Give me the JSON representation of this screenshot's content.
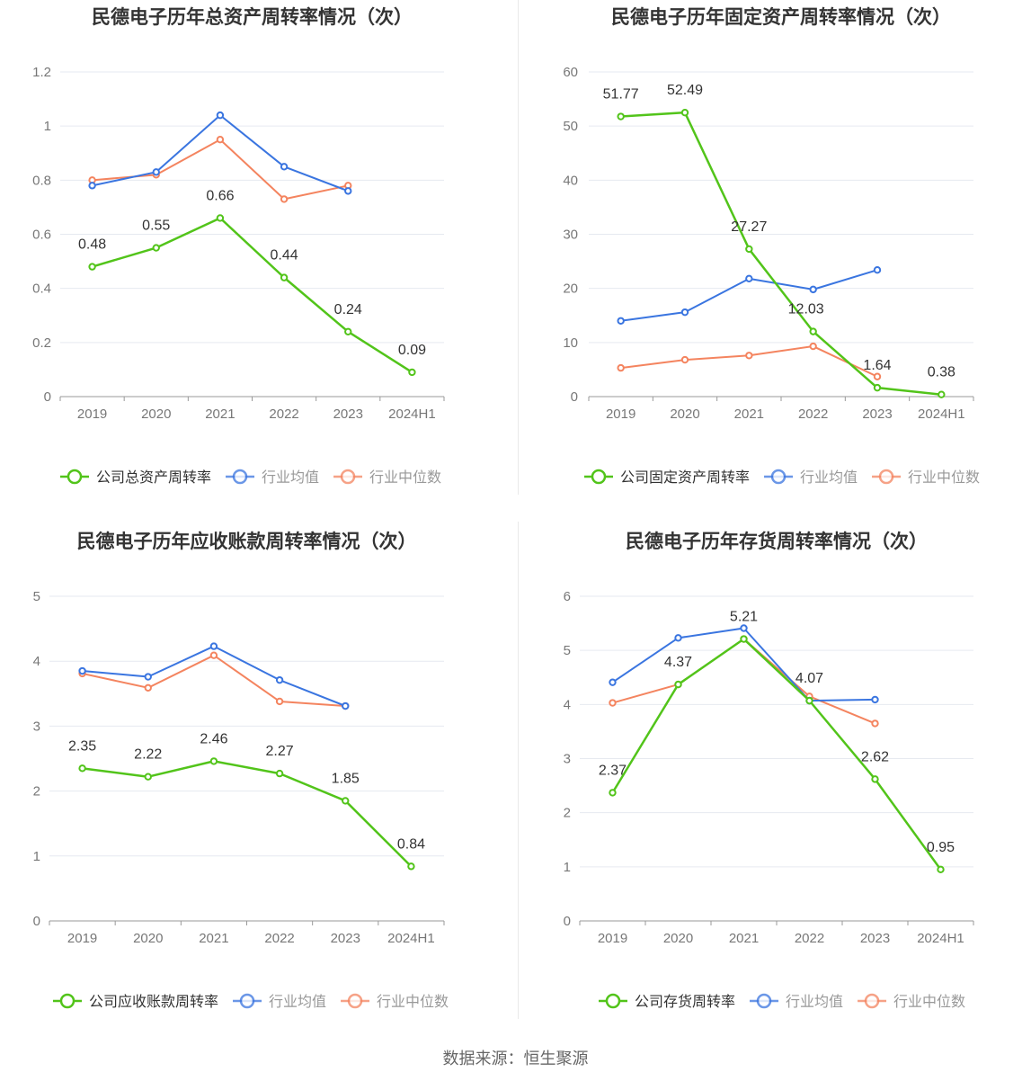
{
  "source": "数据来源：恒生聚源",
  "legend_labels": {
    "avg": "行业均值",
    "median": "行业中位数"
  },
  "colors": {
    "company": "#52c41a",
    "avg": "#3a75e0",
    "median": "#f4845f",
    "grid": "#e6e9f0",
    "axis": "#999999",
    "tick_text": "#777777",
    "title": "#333333"
  },
  "chart_data": [
    {
      "type": "line",
      "title": "民德电子历年总资产周转率情况（次）",
      "x": [
        "2019",
        "2020",
        "2021",
        "2022",
        "2023",
        "2024H1"
      ],
      "ylim": [
        0,
        1.2
      ],
      "yticks": [
        "0",
        "0.2",
        "0.4",
        "0.6",
        "0.8",
        "1",
        "1.2"
      ],
      "yticks_values": [
        0,
        0.2,
        0.4,
        0.6,
        0.8,
        1.0,
        1.2
      ],
      "grid": true,
      "legend": "bottom",
      "series": [
        {
          "name": "公司总资产周转率",
          "key": "company",
          "values": [
            0.48,
            0.55,
            0.66,
            0.44,
            0.24,
            0.09
          ],
          "labels": [
            "0.48",
            "0.55",
            "0.66",
            "0.44",
            "0.24",
            "0.09"
          ]
        },
        {
          "name": "行业均值",
          "key": "avg",
          "values": [
            0.78,
            0.83,
            1.04,
            0.85,
            0.76,
            null
          ]
        },
        {
          "name": "行业中位数",
          "key": "median",
          "values": [
            0.8,
            0.82,
            0.95,
            0.73,
            0.78,
            null
          ]
        }
      ]
    },
    {
      "type": "line",
      "title": "民德电子历年固定资产周转率情况（次）",
      "x": [
        "2019",
        "2020",
        "2021",
        "2022",
        "2023",
        "2024H1"
      ],
      "ylim": [
        0,
        60
      ],
      "yticks": [
        "0",
        "10",
        "20",
        "30",
        "40",
        "50",
        "60"
      ],
      "yticks_values": [
        0,
        10,
        20,
        30,
        40,
        50,
        60
      ],
      "grid": true,
      "legend": "bottom",
      "series": [
        {
          "name": "公司固定资产周转率",
          "key": "company",
          "values": [
            51.77,
            52.49,
            27.27,
            12.03,
            1.64,
            0.38
          ],
          "labels": [
            "51.77",
            "52.49",
            "27.27",
            "12.03",
            "1.64",
            "0.38"
          ]
        },
        {
          "name": "行业均值",
          "key": "avg",
          "values": [
            14.0,
            15.6,
            21.8,
            19.8,
            23.4,
            null
          ]
        },
        {
          "name": "行业中位数",
          "key": "median",
          "values": [
            5.3,
            6.8,
            7.6,
            9.3,
            3.7,
            null
          ]
        }
      ]
    },
    {
      "type": "line",
      "title": "民德电子历年应收账款周转率情况（次）",
      "x": [
        "2019",
        "2020",
        "2021",
        "2022",
        "2023",
        "2024H1"
      ],
      "ylim": [
        0,
        5
      ],
      "yticks": [
        "0",
        "1",
        "2",
        "3",
        "4",
        "5"
      ],
      "yticks_values": [
        0,
        1,
        2,
        3,
        4,
        5
      ],
      "grid": true,
      "legend": "bottom",
      "series": [
        {
          "name": "公司应收账款周转率",
          "key": "company",
          "values": [
            2.35,
            2.22,
            2.46,
            2.27,
            1.85,
            0.84
          ],
          "labels": [
            "2.35",
            "2.22",
            "2.46",
            "2.27",
            "1.85",
            "0.84"
          ]
        },
        {
          "name": "行业均值",
          "key": "avg",
          "values": [
            3.85,
            3.76,
            4.23,
            3.71,
            3.31,
            null
          ]
        },
        {
          "name": "行业中位数",
          "key": "median",
          "values": [
            3.81,
            3.59,
            4.09,
            3.38,
            3.31,
            null
          ]
        }
      ]
    },
    {
      "type": "line",
      "title": "民德电子历年存货周转率情况（次）",
      "x": [
        "2019",
        "2020",
        "2021",
        "2022",
        "2023",
        "2024H1"
      ],
      "ylim": [
        0,
        6
      ],
      "yticks": [
        "0",
        "1",
        "2",
        "3",
        "4",
        "5",
        "6"
      ],
      "yticks_values": [
        0,
        1,
        2,
        3,
        4,
        5,
        6
      ],
      "grid": true,
      "legend": "bottom",
      "series": [
        {
          "name": "公司存货周转率",
          "key": "company",
          "values": [
            2.37,
            4.37,
            5.21,
            4.07,
            2.62,
            0.95
          ],
          "labels": [
            "2.37",
            "4.37",
            "5.21",
            "4.07",
            "2.62",
            "0.95"
          ]
        },
        {
          "name": "行业均值",
          "key": "avg",
          "values": [
            4.41,
            5.23,
            5.41,
            4.07,
            4.09,
            null
          ]
        },
        {
          "name": "行业中位数",
          "key": "median",
          "values": [
            4.03,
            4.37,
            5.21,
            4.15,
            3.65,
            null
          ]
        }
      ]
    }
  ]
}
